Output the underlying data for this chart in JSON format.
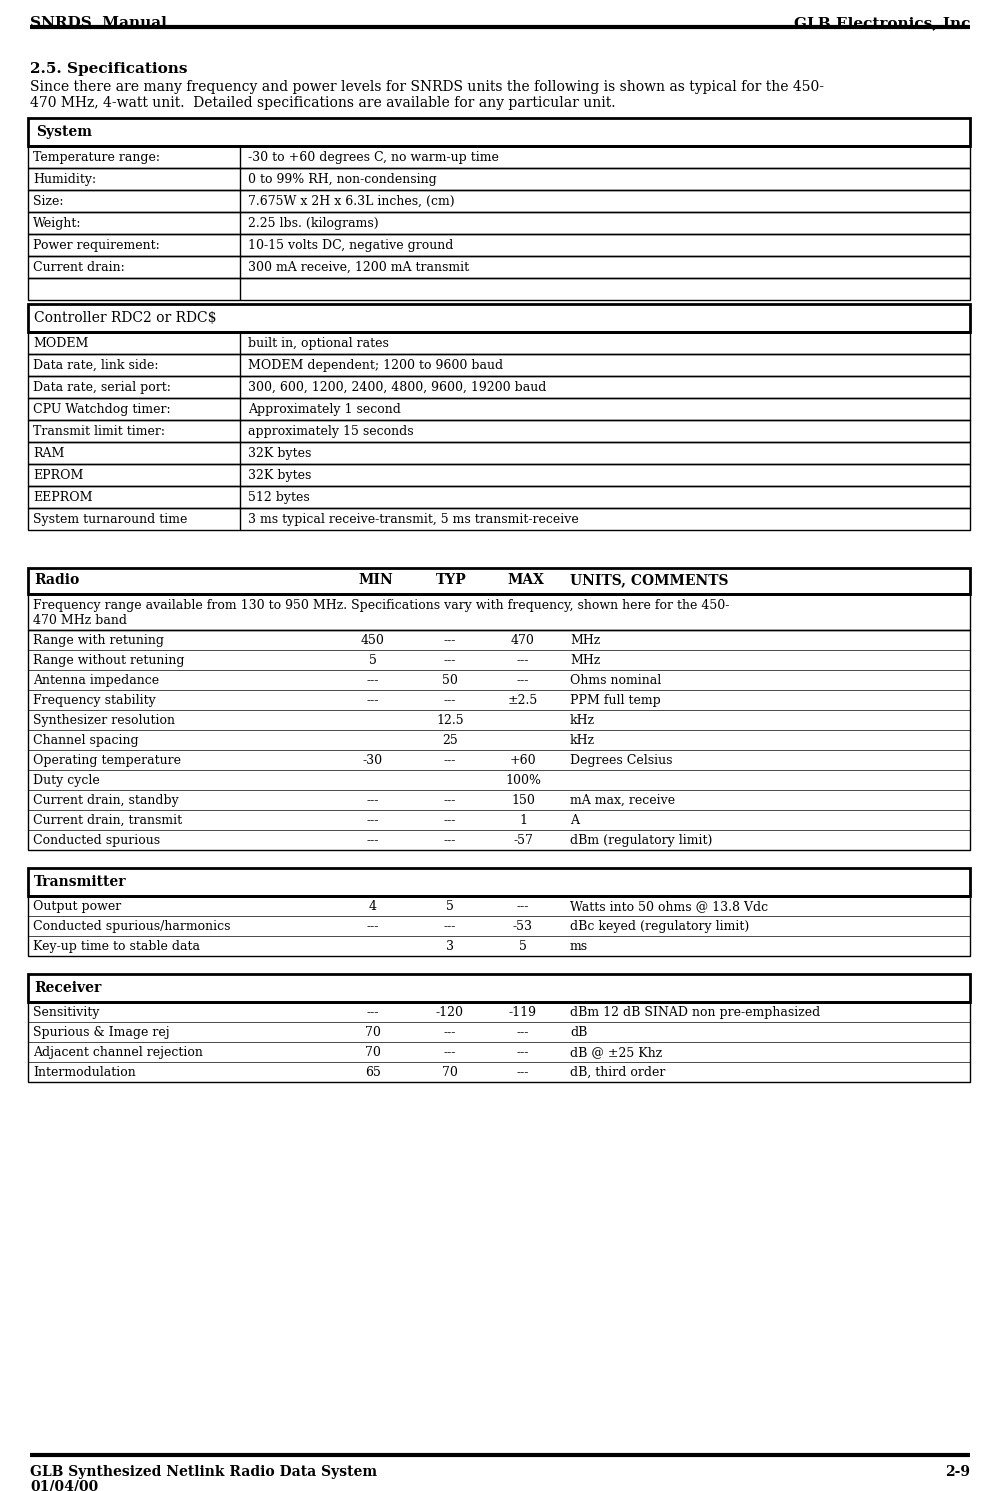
{
  "header_left": "SNRDS  Manual",
  "header_right": "GLB Electronics, Inc",
  "footer_left": "GLB Synthesized Netlink Radio Data System",
  "footer_right": "2-9",
  "footer_date": "01/04/00",
  "section_title": "2.5. Specifications",
  "intro_line1": "Since there are many frequency and power levels for SNRDS units the following is shown as typical for the 450-",
  "intro_line2": "470 MHz, 4-watt unit.  Detailed specifications are available for any particular unit.",
  "system_header": "System",
  "system_rows": [
    [
      "Temperature range:",
      "-30 to +60 degrees C, no warm-up time"
    ],
    [
      "Humidity:",
      "0 to 99% RH, non-condensing"
    ],
    [
      "Size:",
      "7.675W x 2H x 6.3L inches, (cm)"
    ],
    [
      "Weight:",
      "2.25 lbs. (kilograms)"
    ],
    [
      "Power requirement:",
      "10-15 volts DC, negative ground"
    ],
    [
      "Current drain:",
      "300 mA receive, 1200 mA transmit"
    ],
    [
      "",
      ""
    ]
  ],
  "controller_header": "Controller RDC2 or RDC$",
  "controller_rows": [
    [
      "MODEM",
      "built in, optional rates"
    ],
    [
      "Data rate, link side:",
      "MODEM dependent; 1200 to 9600 baud"
    ],
    [
      "Data rate, serial port:",
      "300, 600, 1200, 2400, 4800, 9600, 19200 baud"
    ],
    [
      "CPU Watchdog timer:",
      "Approximately 1 second"
    ],
    [
      "Transmit limit timer:",
      "approximately 15 seconds"
    ],
    [
      "RAM",
      "32K bytes"
    ],
    [
      "EPROM",
      "32K bytes"
    ],
    [
      "EEPROM",
      "512 bytes"
    ],
    [
      "System turnaround time",
      "3 ms typical receive-transmit, 5 ms transmit-receive"
    ]
  ],
  "radio_header": [
    "Radio",
    "MIN",
    "TYP",
    "MAX",
    "UNITS, COMMENTS"
  ],
  "radio_intro_line1": "Frequency range available from 130 to 950 MHz. Specifications vary with frequency, shown here for the 450-",
  "radio_intro_line2": "470 MHz band",
  "radio_rows": [
    [
      "Range with retuning",
      "450",
      "---",
      "470",
      "MHz"
    ],
    [
      "Range without retuning",
      "5",
      "---",
      "---",
      "MHz"
    ],
    [
      "Antenna impedance",
      "---",
      "50",
      "---",
      "Ohms nominal"
    ],
    [
      "Frequency stability",
      "---",
      "---",
      "±2.5",
      "PPM full temp"
    ],
    [
      "Synthesizer resolution",
      "",
      "12.5",
      "",
      "kHz"
    ],
    [
      "Channel spacing",
      "",
      "25",
      "",
      "kHz"
    ],
    [
      "Operating temperature",
      "-30",
      "---",
      "+60",
      "Degrees Celsius"
    ],
    [
      "Duty cycle",
      "",
      "",
      "100%",
      ""
    ],
    [
      "Current drain, standby",
      "---",
      "---",
      "150",
      "mA max, receive"
    ],
    [
      "Current drain, transmit",
      "---",
      "---",
      "1",
      "A"
    ],
    [
      "Conducted spurious",
      "---",
      "---",
      "-57",
      "dBm (regulatory limit)"
    ]
  ],
  "transmitter_header": "Transmitter",
  "transmitter_rows": [
    [
      "Output power",
      "4",
      "5",
      "---",
      "Watts into 50 ohms @ 13.8 Vdc"
    ],
    [
      "Conducted spurious/harmonics",
      "---",
      "---",
      "-53",
      "dBc keyed (regulatory limit)"
    ],
    [
      "Key-up time to stable data",
      "",
      "3",
      "5",
      "ms"
    ]
  ],
  "receiver_header": "Receiver",
  "receiver_rows": [
    [
      "Sensitivity",
      "---",
      "-120",
      "-119",
      "dBm 12 dB SINAD non pre-emphasized"
    ],
    [
      "Spurious & Image rej",
      "70",
      "---",
      "---",
      "dB"
    ],
    [
      "Adjacent channel rejection",
      "70",
      "---",
      "---",
      "dB @ ±25 Khz"
    ],
    [
      "Intermodulation",
      "65",
      "70",
      "---",
      "dB, third order"
    ]
  ]
}
